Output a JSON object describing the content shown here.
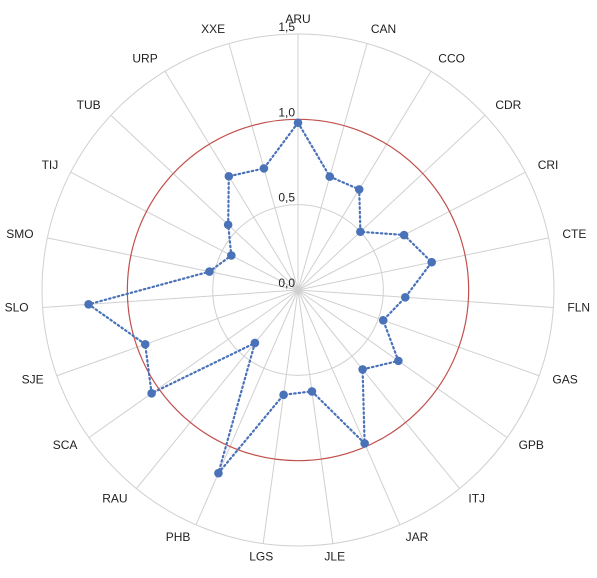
{
  "chart_data": {
    "type": "radar",
    "categories": [
      "ARU",
      "CAN",
      "CCO",
      "CDR",
      "CRI",
      "CTE",
      "FLN",
      "GAS",
      "GPB",
      "ITJ",
      "JAR",
      "JLE",
      "LGS",
      "PHB",
      "RAU",
      "SCA",
      "SJE",
      "SLO",
      "SMO",
      "TIJ",
      "TUB",
      "URP",
      "XXE"
    ],
    "values": [
      0.98,
      0.69,
      0.69,
      0.5,
      0.7,
      0.8,
      0.63,
      0.53,
      0.72,
      0.6,
      0.98,
      0.6,
      0.62,
      1.17,
      0.4,
      1.05,
      0.95,
      1.23,
      0.53,
      0.44,
      0.56,
      0.78,
      0.74
    ],
    "reference": {
      "value": 1.0,
      "color": "#c0504d"
    },
    "ylim": [
      0,
      1.5
    ],
    "ticks": [
      "0,0",
      "0,5",
      "1,0",
      "1,5"
    ],
    "grid": true,
    "series_color": "#4a72b8",
    "line_style": "dotted"
  }
}
